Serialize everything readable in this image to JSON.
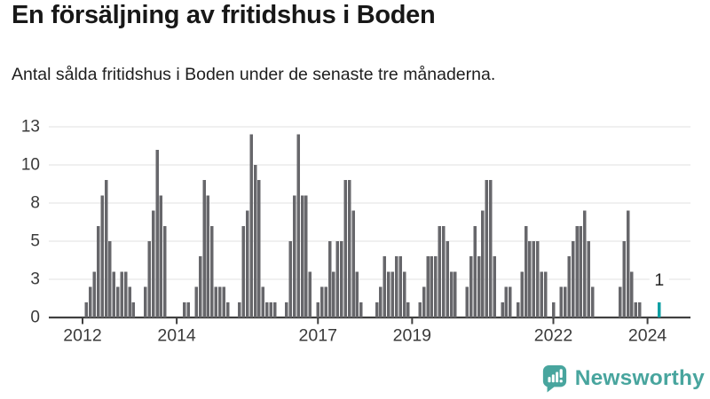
{
  "header": {
    "title": "En försäljning av fritidshus i Boden",
    "subtitle": "Antal sålda fritidshus i Boden under de senaste tre månaderna."
  },
  "footer": {
    "brand": "Newsworthy",
    "logo_icon": "newsworthy-speech-bubble-with-bar-chart-and-exclamation"
  },
  "chart_data": {
    "type": "bar",
    "title": "En försäljning av fritidshus i Boden",
    "subtitle": "Antal sålda fritidshus i Boden under de senaste tre månaderna.",
    "x_unit": "month",
    "bars_format": "[months_since_jan_2012, value]",
    "bars": [
      [
        1,
        1
      ],
      [
        2,
        2
      ],
      [
        3,
        3
      ],
      [
        4,
        6
      ],
      [
        5,
        8
      ],
      [
        6,
        9
      ],
      [
        7,
        5
      ],
      [
        8,
        3
      ],
      [
        9,
        2
      ],
      [
        10,
        3
      ],
      [
        11,
        3
      ],
      [
        12,
        2
      ],
      [
        13,
        1
      ],
      [
        16,
        2
      ],
      [
        17,
        5
      ],
      [
        18,
        7
      ],
      [
        19,
        11
      ],
      [
        20,
        8
      ],
      [
        21,
        6
      ],
      [
        26,
        1
      ],
      [
        27,
        1
      ],
      [
        29,
        2
      ],
      [
        30,
        4
      ],
      [
        31,
        9
      ],
      [
        32,
        8
      ],
      [
        33,
        6
      ],
      [
        34,
        2
      ],
      [
        35,
        2
      ],
      [
        36,
        2
      ],
      [
        37,
        1
      ],
      [
        40,
        1
      ],
      [
        41,
        6
      ],
      [
        42,
        7
      ],
      [
        43,
        12
      ],
      [
        44,
        10
      ],
      [
        45,
        9
      ],
      [
        46,
        2
      ],
      [
        47,
        1
      ],
      [
        48,
        1
      ],
      [
        49,
        1
      ],
      [
        52,
        1
      ],
      [
        53,
        5
      ],
      [
        54,
        8
      ],
      [
        55,
        12
      ],
      [
        56,
        8
      ],
      [
        57,
        8
      ],
      [
        58,
        3
      ],
      [
        60,
        1
      ],
      [
        61,
        2
      ],
      [
        62,
        2
      ],
      [
        63,
        5
      ],
      [
        64,
        3
      ],
      [
        65,
        5
      ],
      [
        66,
        5
      ],
      [
        67,
        9
      ],
      [
        68,
        9
      ],
      [
        69,
        7
      ],
      [
        70,
        3
      ],
      [
        71,
        1
      ],
      [
        75,
        1
      ],
      [
        76,
        2
      ],
      [
        77,
        4
      ],
      [
        78,
        3
      ],
      [
        79,
        3
      ],
      [
        80,
        4
      ],
      [
        81,
        4
      ],
      [
        82,
        3
      ],
      [
        83,
        1
      ],
      [
        86,
        1
      ],
      [
        87,
        2
      ],
      [
        88,
        4
      ],
      [
        89,
        4
      ],
      [
        90,
        4
      ],
      [
        91,
        6
      ],
      [
        92,
        6
      ],
      [
        93,
        5
      ],
      [
        94,
        3
      ],
      [
        95,
        3
      ],
      [
        98,
        2
      ],
      [
        99,
        4
      ],
      [
        100,
        6
      ],
      [
        101,
        4
      ],
      [
        102,
        7
      ],
      [
        103,
        9
      ],
      [
        104,
        9
      ],
      [
        105,
        4
      ],
      [
        107,
        1
      ],
      [
        108,
        2
      ],
      [
        109,
        2
      ],
      [
        111,
        1
      ],
      [
        112,
        3
      ],
      [
        113,
        6
      ],
      [
        114,
        5
      ],
      [
        115,
        5
      ],
      [
        116,
        5
      ],
      [
        117,
        3
      ],
      [
        118,
        3
      ],
      [
        120,
        1
      ],
      [
        122,
        2
      ],
      [
        123,
        2
      ],
      [
        124,
        4
      ],
      [
        125,
        5
      ],
      [
        126,
        6
      ],
      [
        127,
        6
      ],
      [
        128,
        7
      ],
      [
        129,
        5
      ],
      [
        130,
        2
      ],
      [
        137,
        2
      ],
      [
        138,
        5
      ],
      [
        139,
        7
      ],
      [
        140,
        3
      ],
      [
        141,
        1
      ],
      [
        142,
        1
      ]
    ],
    "highlight_bar": {
      "m": 147,
      "v": 1,
      "label": "1"
    },
    "y_axis": {
      "tick_labels": [
        "0",
        "3",
        "5",
        "8",
        "10",
        "13"
      ],
      "tick_values": [
        0,
        2.5,
        5,
        7.5,
        10,
        12.5
      ],
      "range": [
        0,
        12.5
      ],
      "gridlines": true
    },
    "x_axis": {
      "tick_labels": [
        "2012",
        "2014",
        "2017",
        "2019",
        "2022",
        "2024"
      ],
      "tick_years": [
        2012,
        2014,
        2017,
        2019,
        2022,
        2024
      ]
    },
    "colors": {
      "bar": "#67676b",
      "highlight": "#0e9fa3",
      "axis": "#404040",
      "grid": "#e8e8e8",
      "tick_text": "#3a3a3a",
      "brand": "#48a59e"
    }
  }
}
